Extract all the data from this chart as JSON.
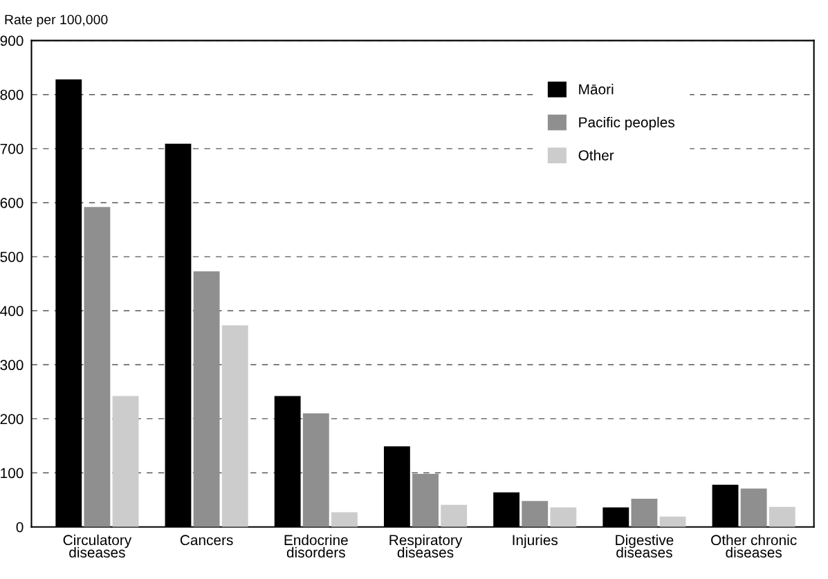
{
  "chart_data": {
    "type": "bar",
    "ylabel": "Rate per 100,000",
    "categories": [
      "Circulatory\ndiseases",
      "Cancers",
      "Endocrine\ndisorders",
      "Respiratory\ndiseases",
      "Injuries",
      "Digestive\ndiseases",
      "Other chronic\ndiseases"
    ],
    "series": [
      {
        "name": "Māori",
        "color": "#000000",
        "values": [
          828,
          709,
          242,
          149,
          64,
          36,
          78
        ]
      },
      {
        "name": "Pacific peoples",
        "color": "#8f8f8f",
        "values": [
          592,
          473,
          210,
          98,
          48,
          52,
          71
        ]
      },
      {
        "name": "Other",
        "color": "#cccccc",
        "values": [
          242,
          373,
          27,
          41,
          36,
          19,
          37
        ]
      }
    ],
    "ylim": [
      0,
      900
    ],
    "yticks": [
      0,
      100,
      200,
      300,
      400,
      500,
      600,
      700,
      800,
      900
    ],
    "grid": "y",
    "legend": "top right"
  }
}
